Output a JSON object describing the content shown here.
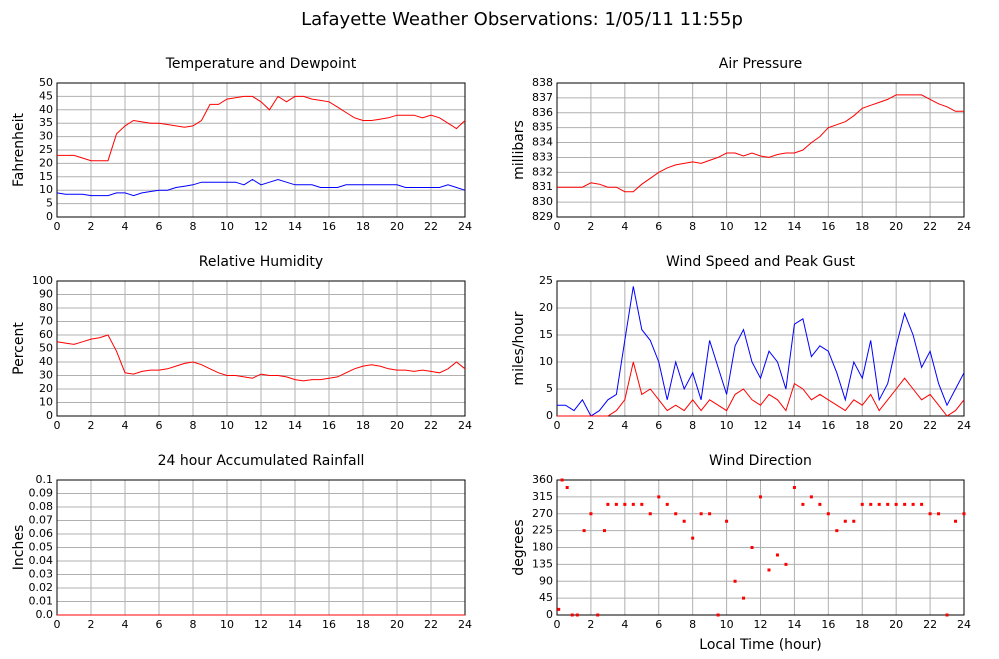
{
  "title": "Lafayette Weather Observations: 1/05/11 11:55p",
  "chart_data": [
    {
      "type": "line",
      "title": "Temperature and Dewpoint",
      "ylabel": "Fahrenheit",
      "x": [
        0,
        0.5,
        1,
        1.5,
        2,
        2.5,
        3,
        3.5,
        4,
        4.5,
        5,
        5.5,
        6,
        6.5,
        7,
        7.5,
        8,
        8.5,
        9,
        9.5,
        10,
        10.5,
        11,
        11.5,
        12,
        12.5,
        13,
        13.5,
        14,
        14.5,
        15,
        15.5,
        16,
        16.5,
        17,
        17.5,
        18,
        18.5,
        19,
        19.5,
        20,
        20.5,
        21,
        21.5,
        22,
        22.5,
        23,
        23.5,
        24
      ],
      "series": [
        {
          "color": "#ff0000",
          "values": [
            23,
            23,
            23,
            22,
            21,
            21,
            21,
            31,
            34,
            36,
            35.5,
            35,
            35,
            34.5,
            34,
            33.5,
            34,
            36,
            42,
            42,
            44,
            44.5,
            45,
            45,
            43,
            40,
            45,
            43,
            45,
            45,
            44,
            43.5,
            43,
            41,
            39,
            37,
            36,
            36,
            36.5,
            37,
            38,
            38,
            38,
            37,
            38,
            37,
            35,
            33,
            36
          ]
        },
        {
          "color": "#0000ff",
          "values": [
            9,
            8.5,
            8.5,
            8.5,
            8,
            8,
            8,
            9,
            9,
            8,
            9,
            9.5,
            10,
            10,
            11,
            11.5,
            12,
            13,
            13,
            13,
            13,
            13,
            12,
            14,
            12,
            13,
            14,
            13,
            12,
            12,
            12,
            11,
            11,
            11,
            12,
            12,
            12,
            12,
            12,
            12,
            12,
            11,
            11,
            11,
            11,
            11,
            12,
            11,
            10
          ]
        }
      ],
      "xlim": [
        0,
        24
      ],
      "xticks": [
        0,
        2,
        4,
        6,
        8,
        10,
        12,
        14,
        16,
        18,
        20,
        22,
        24
      ],
      "ylim": [
        0,
        50
      ],
      "yticks": [
        0,
        5,
        10,
        15,
        20,
        25,
        30,
        35,
        40,
        45,
        50
      ],
      "grid": true
    },
    {
      "type": "line",
      "title": "Air Pressure",
      "ylabel": "millibars",
      "x": [
        0,
        0.5,
        1,
        1.5,
        2,
        2.5,
        3,
        3.5,
        4,
        4.5,
        5,
        5.5,
        6,
        6.5,
        7,
        7.5,
        8,
        8.5,
        9,
        9.5,
        10,
        10.5,
        11,
        11.5,
        12,
        12.5,
        13,
        13.5,
        14,
        14.5,
        15,
        15.5,
        16,
        16.5,
        17,
        17.5,
        18,
        18.5,
        19,
        19.5,
        20,
        20.5,
        21,
        21.5,
        22,
        22.5,
        23,
        23.5,
        24
      ],
      "series": [
        {
          "color": "#ff0000",
          "values": [
            831,
            831,
            831,
            831,
            831.3,
            831.2,
            831,
            831,
            830.7,
            830.7,
            831.2,
            831.6,
            832,
            832.3,
            832.5,
            832.6,
            832.7,
            832.6,
            832.8,
            833,
            833.3,
            833.3,
            833.1,
            833.3,
            833.1,
            833,
            833.2,
            833.3,
            833.3,
            833.5,
            834,
            834.4,
            835,
            835.2,
            835.4,
            835.8,
            836.3,
            836.5,
            836.7,
            836.9,
            837.2,
            837.2,
            837.2,
            837.2,
            836.9,
            836.6,
            836.4,
            836.1,
            836.1
          ]
        }
      ],
      "xlim": [
        0,
        24
      ],
      "xticks": [
        0,
        2,
        4,
        6,
        8,
        10,
        12,
        14,
        16,
        18,
        20,
        22,
        24
      ],
      "ylim": [
        829,
        838
      ],
      "yticks": [
        829,
        830,
        831,
        832,
        833,
        834,
        835,
        836,
        837,
        838
      ],
      "grid": true
    },
    {
      "type": "line",
      "title": "Relative Humidity",
      "ylabel": "Percent",
      "x": [
        0,
        0.5,
        1,
        1.5,
        2,
        2.5,
        3,
        3.5,
        4,
        4.5,
        5,
        5.5,
        6,
        6.5,
        7,
        7.5,
        8,
        8.5,
        9,
        9.5,
        10,
        10.5,
        11,
        11.5,
        12,
        12.5,
        13,
        13.5,
        14,
        14.5,
        15,
        15.5,
        16,
        16.5,
        17,
        17.5,
        18,
        18.5,
        19,
        19.5,
        20,
        20.5,
        21,
        21.5,
        22,
        22.5,
        23,
        23.5,
        24
      ],
      "series": [
        {
          "color": "#ff0000",
          "values": [
            55,
            54,
            53,
            55,
            57,
            58,
            60,
            48,
            32,
            31,
            33,
            34,
            34,
            35,
            37,
            39,
            40,
            38,
            35,
            32,
            30,
            30,
            29,
            28,
            31,
            30,
            30,
            29,
            27,
            26,
            27,
            27,
            28,
            29,
            32,
            35,
            37,
            38,
            37,
            35,
            34,
            34,
            33,
            34,
            33,
            32,
            35,
            40,
            35
          ]
        }
      ],
      "xlim": [
        0,
        24
      ],
      "xticks": [
        0,
        2,
        4,
        6,
        8,
        10,
        12,
        14,
        16,
        18,
        20,
        22,
        24
      ],
      "ylim": [
        0,
        100
      ],
      "yticks": [
        0,
        10,
        20,
        30,
        40,
        50,
        60,
        70,
        80,
        90,
        100
      ],
      "grid": true
    },
    {
      "type": "line",
      "title": "Wind Speed and Peak Gust",
      "ylabel": "miles/hour",
      "x": [
        0,
        0.5,
        1,
        1.5,
        2,
        2.5,
        3,
        3.5,
        4,
        4.5,
        5,
        5.5,
        6,
        6.5,
        7,
        7.5,
        8,
        8.5,
        9,
        9.5,
        10,
        10.5,
        11,
        11.5,
        12,
        12.5,
        13,
        13.5,
        14,
        14.5,
        15,
        15.5,
        16,
        16.5,
        17,
        17.5,
        18,
        18.5,
        19,
        19.5,
        20,
        20.5,
        21,
        21.5,
        22,
        22.5,
        23,
        23.5,
        24
      ],
      "series": [
        {
          "color": "#0000ff",
          "values": [
            2,
            2,
            1,
            3,
            0,
            1,
            3,
            4,
            14,
            24,
            16,
            14,
            10,
            3,
            10,
            5,
            8,
            3,
            14,
            9,
            4,
            13,
            16,
            10,
            7,
            12,
            10,
            5,
            17,
            18,
            11,
            13,
            12,
            8,
            3,
            10,
            7,
            14,
            3,
            6,
            13,
            19,
            15,
            9,
            12,
            6,
            2,
            5,
            8
          ]
        },
        {
          "color": "#ff0000",
          "values": [
            0,
            0,
            0,
            0,
            0,
            0,
            0,
            1,
            3,
            10,
            4,
            5,
            3,
            1,
            2,
            1,
            3,
            1,
            3,
            2,
            1,
            4,
            5,
            3,
            2,
            4,
            3,
            1,
            6,
            5,
            3,
            4,
            3,
            2,
            1,
            3,
            2,
            4,
            1,
            3,
            5,
            7,
            5,
            3,
            4,
            2,
            0,
            1,
            3
          ]
        }
      ],
      "xlim": [
        0,
        24
      ],
      "xticks": [
        0,
        2,
        4,
        6,
        8,
        10,
        12,
        14,
        16,
        18,
        20,
        22,
        24
      ],
      "ylim": [
        0,
        25
      ],
      "yticks": [
        0,
        5,
        10,
        15,
        20,
        25
      ],
      "grid": true
    },
    {
      "type": "line",
      "title": "24 hour Accumulated Rainfall",
      "ylabel": "Inches",
      "x": [
        0,
        24
      ],
      "series": [
        {
          "color": "#ff0000",
          "values": [
            0,
            0
          ]
        }
      ],
      "xlim": [
        0,
        24
      ],
      "xticks": [
        0,
        2,
        4,
        6,
        8,
        10,
        12,
        14,
        16,
        18,
        20,
        22,
        24
      ],
      "ylim": [
        0,
        0.1
      ],
      "yticks": [
        {
          "value": 0,
          "label": "0.0"
        },
        0.01,
        0.02,
        0.03,
        0.04,
        0.05,
        0.06,
        0.07,
        0.08,
        0.09,
        0.1
      ],
      "grid": true
    },
    {
      "type": "scatter",
      "title": "Wind Direction",
      "ylabel": "degrees",
      "xlabel": "Local Time (hour)",
      "x": [
        0.1,
        0.3,
        0.6,
        0.9,
        1.2,
        1.6,
        2,
        2.4,
        2.8,
        3,
        3.5,
        4,
        4.5,
        5,
        5.5,
        6,
        6.5,
        7,
        7.5,
        8,
        8.5,
        9,
        9.5,
        10,
        10.5,
        11,
        11.5,
        12,
        12.5,
        13,
        13.5,
        14,
        14.5,
        15,
        15.5,
        16,
        16.5,
        17,
        17.5,
        18,
        18.5,
        19,
        19.5,
        20,
        20.5,
        21,
        21.5,
        22,
        22.5,
        23,
        23.5,
        24
      ],
      "series": [
        {
          "color": "#ff0000",
          "values": [
            15,
            360,
            340,
            0,
            0,
            225,
            270,
            0,
            225,
            295,
            295,
            295,
            295,
            295,
            270,
            315,
            295,
            270,
            250,
            205,
            270,
            270,
            0,
            250,
            90,
            45,
            180,
            315,
            120,
            160,
            135,
            340,
            295,
            315,
            295,
            270,
            225,
            250,
            250,
            295,
            295,
            295,
            295,
            295,
            295,
            295,
            295,
            270,
            270,
            0,
            250,
            270
          ]
        }
      ],
      "xlim": [
        0,
        24
      ],
      "xticks": [
        0,
        2,
        4,
        6,
        8,
        10,
        12,
        14,
        16,
        18,
        20,
        22,
        24
      ],
      "ylim": [
        0,
        360
      ],
      "yticks": [
        0,
        45,
        90,
        135,
        180,
        225,
        270,
        315,
        360
      ],
      "grid": true
    }
  ]
}
